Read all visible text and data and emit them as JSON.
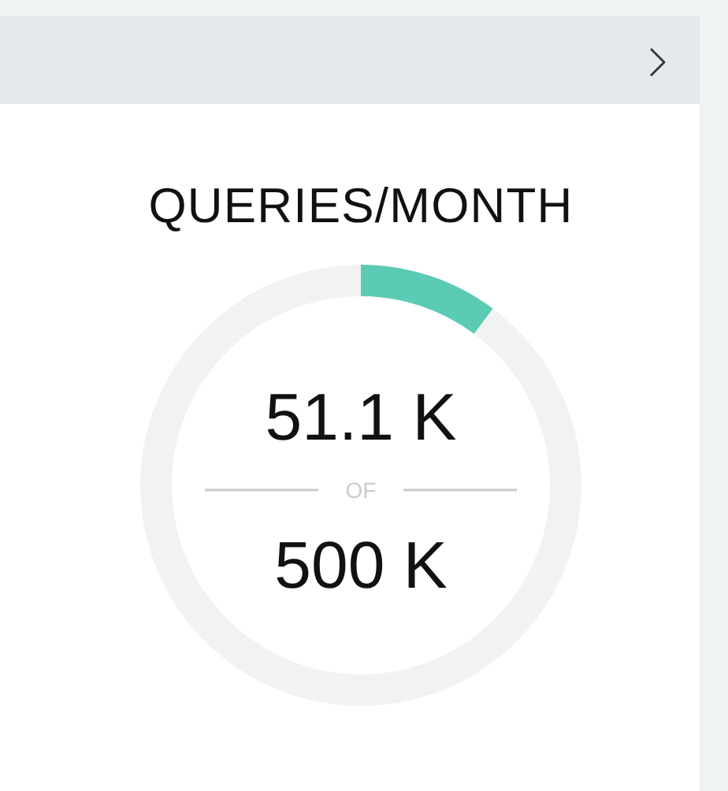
{
  "chart_data": {
    "type": "donut",
    "title": "QUERIES/MONTH",
    "categories": [
      null,
      null
    ],
    "values": [
      10.22,
      89.78
    ],
    "colors": [
      "#5ccbb5",
      "#f2f2f2"
    ],
    "annotations": [
      "51.1 K",
      "OF",
      "500 K"
    ]
  }
}
